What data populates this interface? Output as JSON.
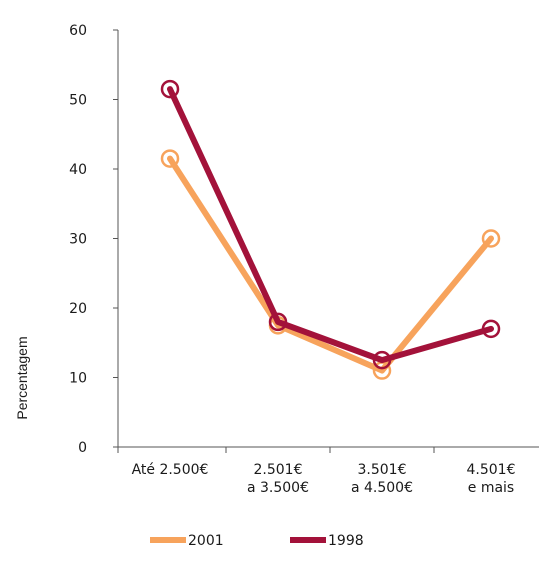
{
  "chart_data": {
    "type": "line",
    "title": "",
    "xlabel": "",
    "ylabel": "Percentagem",
    "ylim": [
      0,
      60
    ],
    "yticks": [
      0,
      10,
      20,
      30,
      40,
      50,
      60
    ],
    "grid": false,
    "legend_position": "bottom",
    "categories": [
      [
        "Até 2.500€"
      ],
      [
        "2.501€",
        "a 3.500€"
      ],
      [
        "3.501€",
        "a 4.500€"
      ],
      [
        "4.501€",
        "e mais"
      ]
    ],
    "series": [
      {
        "name": "2001",
        "color": "#f7a35c",
        "values": [
          41.5,
          17.5,
          11,
          30
        ]
      },
      {
        "name": "1998",
        "color": "#a3123a",
        "values": [
          51.5,
          18,
          12.5,
          17
        ]
      }
    ],
    "legend_order": [
      "2001",
      "1998"
    ]
  }
}
